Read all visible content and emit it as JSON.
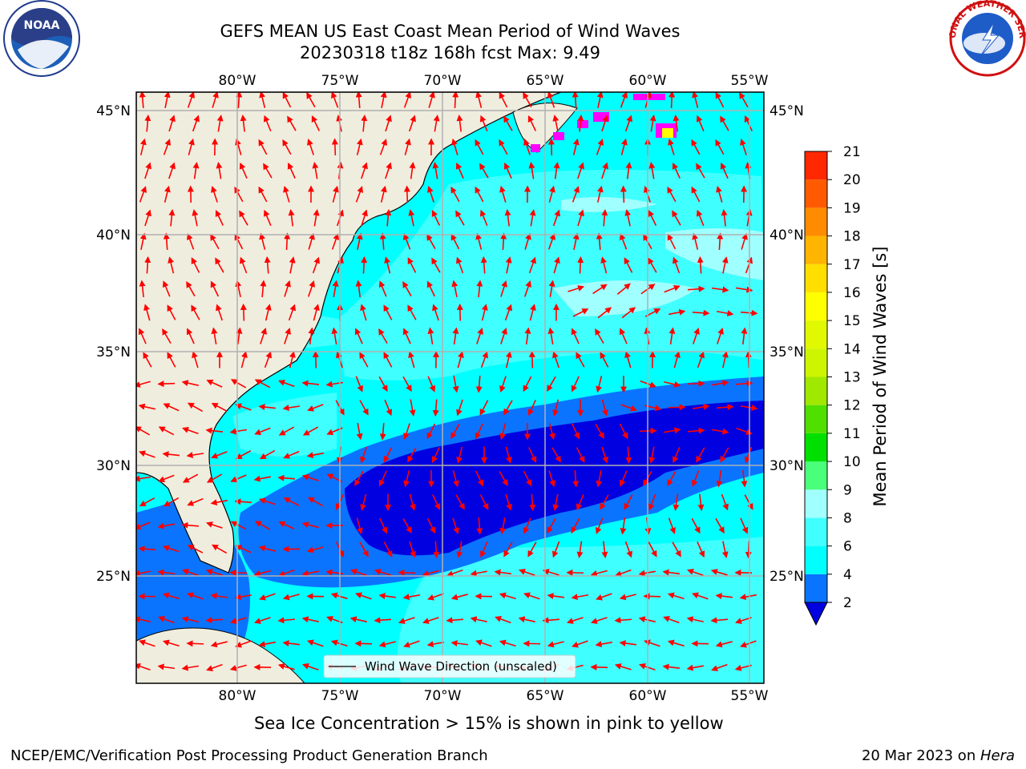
{
  "title_line1": "GEFS MEAN US East Coast Mean Period of Wind Waves",
  "title_line2": "20230318 t18z 168h fcst   Max: 9.49",
  "map": {
    "lon_labels": [
      "80°W",
      "75°W",
      "70°W",
      "65°W",
      "60°W",
      "55°W"
    ],
    "lat_labels": [
      "45°N",
      "40°N",
      "35°N",
      "30°N",
      "25°N"
    ],
    "legend_label": "Wind Wave Direction (unscaled)",
    "arrow_color": "#ff0000",
    "land_color": "#efedde",
    "grid_color": "#b0b0b0"
  },
  "colorbar": {
    "label": "Mean Period of Wind Waves [s]",
    "ticks": [
      "2",
      "4",
      "6",
      "8",
      "9",
      "10",
      "11",
      "12",
      "13",
      "14",
      "15",
      "16",
      "17",
      "18",
      "19",
      "20",
      "21"
    ],
    "colors": [
      "#0a74ff",
      "#00ffff",
      "#40ffff",
      "#a0ffff",
      "#4aff7a",
      "#00e000",
      "#50e000",
      "#a0e800",
      "#cdf500",
      "#e0f800",
      "#ffff00",
      "#ffde00",
      "#ffb400",
      "#ff8c00",
      "#ff5a00",
      "#ff2800"
    ]
  },
  "caption": "Sea Ice Concentration > 15% is shown in pink to yellow",
  "footer": {
    "left": "NCEP/EMC/Verification Post Processing Product Generation Branch",
    "right_date": "20 Mar 2023 on ",
    "right_host": "Hera"
  },
  "logos": {
    "noaa_text": "NOAA",
    "nws_text": "NATIONAL WEATHER SERVICE"
  }
}
